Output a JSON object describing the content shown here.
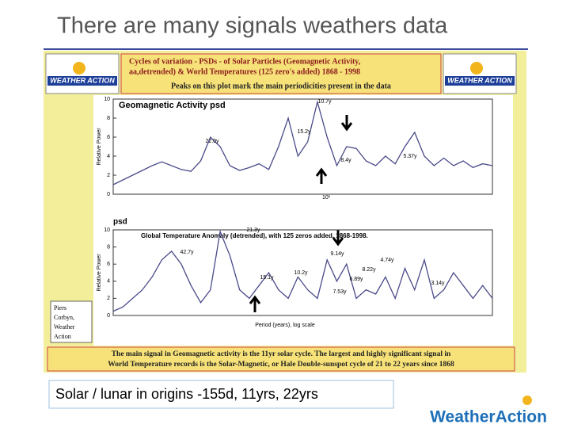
{
  "title": "There are many signals weathers data",
  "header": {
    "line1": "Cycles of variation - PSDs - of Solar Particles (Geomagnetic Activity,",
    "line2": "aa,detrended) & World Temperatures (125 zero's added) 1868 - 1998",
    "line3": "Peaks on this plot mark the main periodicities present in the data",
    "logo": "WEATHER ACTION"
  },
  "credit": [
    "Piers",
    "Corbyn,",
    "Weather",
    "Action"
  ],
  "caption": [
    "The main signal in Geomagnetic activity is the 11yr solar cycle. The largest and highly significant signal in",
    "World Temperature records is the Solar-Magnetic, or Hale Double-sunspot cycle of 21 to 22 years since 1868"
  ],
  "note": "Solar / lunar in origins -155d, 11yrs, 22yrs",
  "brand": "WeatherAction",
  "chart_data": [
    {
      "type": "line",
      "title": "Geomagnetic Activity psd",
      "ylabel": "Relative Power",
      "color": "#4a4a8a",
      "ylim": [
        0,
        10
      ],
      "yticks": [
        0,
        2,
        4,
        6,
        8,
        10
      ],
      "xtick": "10¹",
      "values": [
        1,
        1.5,
        2,
        2.5,
        3,
        3.4,
        3,
        2.6,
        2.4,
        3.5,
        6,
        5,
        3,
        2.5,
        2.8,
        3.2,
        2.6,
        5,
        8,
        4,
        5.5,
        9.7,
        6,
        3,
        5,
        4.8,
        3.5,
        3,
        4,
        3.2,
        5,
        6.5,
        4,
        3,
        3.8,
        3,
        3.5,
        2.8,
        3.2,
        3
      ],
      "annotations": [
        "22.0y",
        "15.2y",
        "10.7y",
        "8.4y",
        "5.37y"
      ]
    },
    {
      "type": "line",
      "title": "Global Temperature Anomaly (detrended), with 125 zeros added, 1868-1998.",
      "label": "psd",
      "ylabel": "Relative Power",
      "xlabel": "Period (years), log scale",
      "color": "#4a4a8a",
      "ylim": [
        0,
        10
      ],
      "yticks": [
        0,
        2,
        4,
        6,
        8,
        10
      ],
      "values": [
        0.5,
        1,
        2,
        3,
        4.5,
        6.5,
        7.5,
        6,
        3.5,
        1.5,
        3,
        9.8,
        7,
        3,
        2,
        3.5,
        5,
        3,
        2,
        4.5,
        3,
        2,
        6.5,
        4,
        6,
        2,
        3,
        2.5,
        4.5,
        2,
        5.5,
        3,
        6.5,
        2,
        3,
        5,
        3.5,
        2,
        3.5,
        2
      ],
      "annotations": [
        "42.7y",
        "21.3y",
        "15.1y",
        "10.2y",
        "9.14y",
        "7.53y",
        "6.89y",
        "8.22y",
        "4.74y",
        "3.14y"
      ]
    }
  ]
}
